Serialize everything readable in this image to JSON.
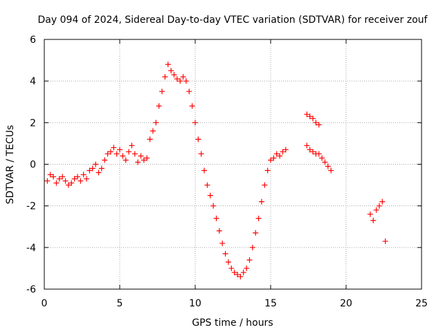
{
  "chart_data": {
    "type": "scatter",
    "title": "Day 094 of 2024, Sidereal Day-to-day VTEC variation (SDTVAR) for receiver zouf",
    "xlabel": "GPS time / hours",
    "ylabel": "SDTVAR / TECUs",
    "xlim": [
      0,
      25
    ],
    "ylim": [
      -6,
      6
    ],
    "xticks": [
      "0",
      "5",
      "10",
      "15",
      "20",
      "25"
    ],
    "yticks": [
      "-6",
      "-4",
      "-2",
      "0",
      "2",
      "4",
      "6"
    ],
    "grid": true,
    "marker": "+",
    "series": [
      {
        "name": "SDTVAR",
        "color": "#ff0000",
        "x": [
          0.2,
          0.4,
          0.6,
          0.8,
          1.0,
          1.2,
          1.4,
          1.6,
          1.8,
          2.0,
          2.2,
          2.4,
          2.6,
          2.8,
          3.0,
          3.2,
          3.4,
          3.6,
          3.8,
          4.0,
          4.2,
          4.4,
          4.6,
          4.8,
          5.0,
          5.2,
          5.4,
          5.6,
          5.8,
          6.0,
          6.2,
          6.4,
          6.6,
          6.8,
          7.0,
          7.2,
          7.4,
          7.6,
          7.8,
          8.0,
          8.2,
          8.4,
          8.6,
          8.8,
          9.0,
          9.2,
          9.4,
          9.6,
          9.8,
          10.0,
          10.2,
          10.4,
          10.6,
          10.8,
          11.0,
          11.2,
          11.4,
          11.6,
          11.8,
          12.0,
          12.2,
          12.4,
          12.6,
          12.8,
          13.0,
          13.2,
          13.4,
          13.6,
          13.8,
          14.0,
          14.2,
          14.4,
          14.6,
          14.8,
          15.0,
          15.2,
          15.4,
          15.6,
          15.8,
          16.0,
          17.4,
          17.6,
          17.8,
          18.0,
          18.2,
          17.4,
          17.6,
          17.8,
          18.0,
          18.2,
          18.4,
          18.6,
          18.8,
          19.0,
          21.6,
          21.8,
          22.0,
          22.2,
          22.4,
          22.6
        ],
        "y": [
          -0.8,
          -0.5,
          -0.6,
          -0.9,
          -0.7,
          -0.6,
          -0.8,
          -1.0,
          -0.9,
          -0.7,
          -0.6,
          -0.8,
          -0.5,
          -0.7,
          -0.3,
          -0.2,
          0.0,
          -0.4,
          -0.2,
          0.2,
          0.5,
          0.6,
          0.8,
          0.5,
          0.7,
          0.4,
          0.2,
          0.6,
          0.9,
          0.5,
          0.1,
          0.4,
          0.2,
          0.3,
          1.2,
          1.6,
          2.0,
          2.8,
          3.5,
          4.2,
          4.8,
          4.5,
          4.3,
          4.1,
          4.0,
          4.2,
          4.0,
          3.5,
          2.8,
          2.0,
          1.2,
          0.5,
          -0.3,
          -1.0,
          -1.5,
          -2.0,
          -2.6,
          -3.2,
          -3.8,
          -4.3,
          -4.7,
          -5.0,
          -5.2,
          -5.3,
          -5.4,
          -5.2,
          -5.0,
          -4.6,
          -4.0,
          -3.3,
          -2.6,
          -1.8,
          -1.0,
          -0.3,
          0.2,
          0.3,
          0.5,
          0.4,
          0.6,
          0.7,
          2.4,
          2.3,
          2.2,
          2.0,
          1.9,
          0.9,
          0.7,
          0.6,
          0.5,
          0.5,
          0.3,
          0.1,
          -0.1,
          -0.3,
          -2.4,
          -2.7,
          -2.2,
          -2.0,
          -1.8,
          -3.7
        ]
      }
    ]
  }
}
